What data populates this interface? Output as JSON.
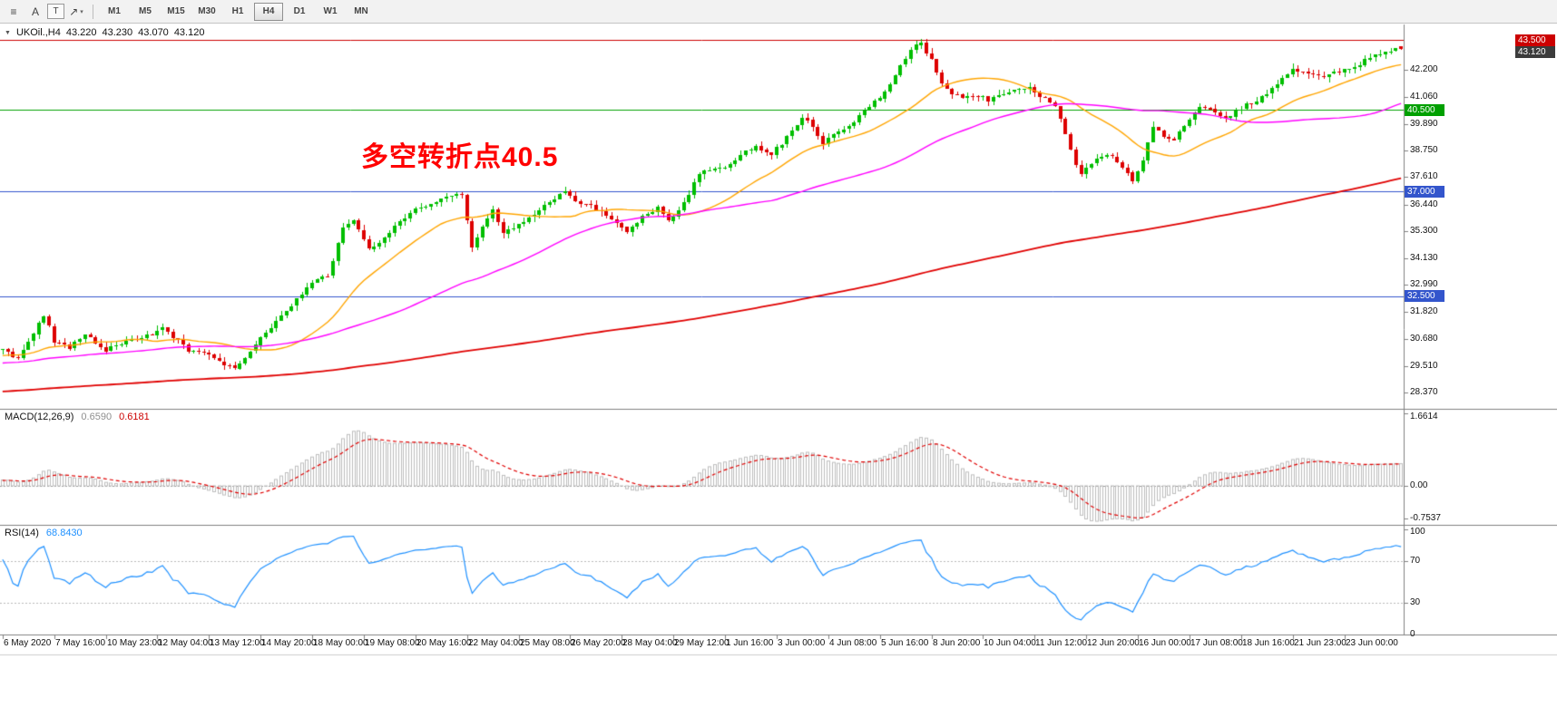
{
  "window": {
    "toolbar": {
      "tool_icons": [
        {
          "name": "lines-tool-icon",
          "glyph": "≡"
        },
        {
          "name": "text-tool-icon",
          "glyph": "A"
        },
        {
          "name": "label-tool-icon",
          "glyph": "T",
          "boxed": true
        },
        {
          "name": "arrows-tool-icon",
          "glyph": "↗",
          "caret": "▾"
        }
      ],
      "timeframes": [
        "M1",
        "M5",
        "M15",
        "M30",
        "H1",
        "H4",
        "D1",
        "W1",
        "MN"
      ],
      "active_timeframe": "H4"
    },
    "chart_header": {
      "collapse_icon": "▼",
      "symbol_period": "UKOil.,H4",
      "open": "43.220",
      "high": "43.230",
      "low": "43.070",
      "close": "43.120"
    }
  },
  "chart_data": {
    "type": "candlestick",
    "symbol": "UKOil",
    "period": "H4",
    "annotation": {
      "text": "多空转折点40.5",
      "color": "#FF0000"
    },
    "candle_colors": {
      "bull": "#00BE00",
      "bear": "#DD0000"
    },
    "price_axis": {
      "ticks": [
        "42.200",
        "41.060",
        "39.890",
        "38.750",
        "37.610",
        "36.440",
        "35.300",
        "34.130",
        "32.990",
        "31.820",
        "30.680",
        "29.510",
        "28.370"
      ]
    },
    "hlines": [
      {
        "label": "43.500",
        "color": "#CC0000",
        "chip_at_edge": true
      },
      {
        "label": "40.500",
        "color": "#00A000",
        "chip_at_edge": false
      },
      {
        "label": "37.000",
        "color": "#3355CC",
        "chip_at_edge": false
      },
      {
        "label": "32.500",
        "color": "#3355CC",
        "chip_at_edge": false
      }
    ],
    "current_price": {
      "label": "43.120",
      "chip_color": "#3C3C3C",
      "chip_at_edge": true
    },
    "moving_averages": [
      {
        "name": "MA21",
        "period": 21,
        "color": "#FFA500"
      },
      {
        "name": "MA60",
        "period": 60,
        "color": "#FF00FF"
      },
      {
        "name": "MA250",
        "period": 250,
        "color": "#E00000"
      }
    ],
    "macd": {
      "label": "MACD(12,26,9)",
      "main_value": "0.6590",
      "signal_value": "0.6181",
      "axis": [
        "1.6614",
        "0.00",
        "-0.7537"
      ],
      "histogram_color": "#BDBDBD",
      "signal_color": "#E00000"
    },
    "rsi": {
      "label": "RSI(14)",
      "value": "68.8430",
      "axis": [
        "100",
        "70",
        "30",
        "0"
      ],
      "levels": [
        70,
        30
      ],
      "color": "#1E90FF"
    },
    "time_axis": [
      "6 May 2020",
      "7 May 16:00",
      "10 May 23:00",
      "12 May 04:00",
      "13 May 12:00",
      "14 May 20:00",
      "18 May 00:00",
      "19 May 08:00",
      "20 May 16:00",
      "22 May 04:00",
      "25 May 08:00",
      "26 May 20:00",
      "28 May 04:00",
      "29 May 12:00",
      "1 Jun 16:00",
      "3 Jun 00:00",
      "4 Jun 08:00",
      "5 Jun 16:00",
      "8 Jun 20:00",
      "10 Jun 04:00",
      "11 Jun 12:00",
      "12 Jun 20:00",
      "16 Jun 00:00",
      "17 Jun 08:00",
      "18 Jun 16:00",
      "21 Jun 23:00",
      "23 Jun 00:00"
    ],
    "bars": 272,
    "noise_seed": 20200623,
    "prehistory_anchors": [
      [
        -260,
        26.8
      ],
      [
        -220,
        27.2
      ],
      [
        -180,
        27.8
      ],
      [
        -140,
        28.2
      ],
      [
        -100,
        28.6
      ],
      [
        -60,
        29.2
      ],
      [
        -30,
        29.6
      ],
      [
        -5,
        30.0
      ]
    ],
    "series_anchors": [
      [
        0,
        30.2
      ],
      [
        3,
        29.8
      ],
      [
        6,
        30.9
      ],
      [
        8,
        31.7
      ],
      [
        10,
        30.6
      ],
      [
        13,
        30.3
      ],
      [
        16,
        30.9
      ],
      [
        20,
        30.2
      ],
      [
        23,
        30.5
      ],
      [
        26,
        30.7
      ],
      [
        29,
        30.9
      ],
      [
        31,
        31.1
      ],
      [
        34,
        30.6
      ],
      [
        36,
        30.2
      ],
      [
        39,
        30.1
      ],
      [
        41,
        29.9
      ],
      [
        43,
        29.6
      ],
      [
        45,
        29.35
      ],
      [
        47,
        29.8
      ],
      [
        50,
        30.7
      ],
      [
        53,
        31.4
      ],
      [
        56,
        32.1
      ],
      [
        58,
        32.6
      ],
      [
        60,
        33.1
      ],
      [
        63,
        33.4
      ],
      [
        66,
        35.4
      ],
      [
        68,
        35.7
      ],
      [
        71,
        34.5
      ],
      [
        74,
        35.0
      ],
      [
        77,
        35.7
      ],
      [
        80,
        36.2
      ],
      [
        83,
        36.5
      ],
      [
        86,
        36.8
      ],
      [
        89,
        36.9
      ],
      [
        91,
        34.6
      ],
      [
        93,
        35.5
      ],
      [
        95,
        36.2
      ],
      [
        97,
        35.2
      ],
      [
        100,
        35.6
      ],
      [
        104,
        36.2
      ],
      [
        107,
        36.7
      ],
      [
        109,
        37.0
      ],
      [
        112,
        36.5
      ],
      [
        114,
        36.4
      ],
      [
        117,
        36.0
      ],
      [
        119,
        35.6
      ],
      [
        121,
        35.2
      ],
      [
        124,
        35.9
      ],
      [
        127,
        36.3
      ],
      [
        129,
        35.7
      ],
      [
        132,
        36.5
      ],
      [
        135,
        37.8
      ],
      [
        138,
        37.9
      ],
      [
        141,
        38.2
      ],
      [
        144,
        38.7
      ],
      [
        146,
        39.0
      ],
      [
        149,
        38.6
      ],
      [
        152,
        39.3
      ],
      [
        155,
        40.2
      ],
      [
        157,
        39.8
      ],
      [
        159,
        39.1
      ],
      [
        162,
        39.6
      ],
      [
        165,
        40.0
      ],
      [
        168,
        40.6
      ],
      [
        171,
        41.3
      ],
      [
        174,
        42.4
      ],
      [
        177,
        43.3
      ],
      [
        178,
        43.4
      ],
      [
        180,
        42.6
      ],
      [
        182,
        41.6
      ],
      [
        184,
        41.2
      ],
      [
        186,
        41.0
      ],
      [
        189,
        41.1
      ],
      [
        191,
        40.9
      ],
      [
        193,
        41.2
      ],
      [
        196,
        41.3
      ],
      [
        199,
        41.5
      ],
      [
        201,
        41.1
      ],
      [
        204,
        40.7
      ],
      [
        206,
        39.5
      ],
      [
        208,
        38.1
      ],
      [
        209,
        37.7
      ],
      [
        211,
        38.2
      ],
      [
        214,
        38.6
      ],
      [
        216,
        38.3
      ],
      [
        219,
        37.5
      ],
      [
        221,
        38.4
      ],
      [
        223,
        39.7
      ],
      [
        225,
        39.4
      ],
      [
        227,
        39.2
      ],
      [
        229,
        39.8
      ],
      [
        232,
        40.6
      ],
      [
        235,
        40.4
      ],
      [
        237,
        40.1
      ],
      [
        240,
        40.6
      ],
      [
        243,
        40.9
      ],
      [
        246,
        41.4
      ],
      [
        248,
        41.8
      ],
      [
        250,
        42.2
      ],
      [
        252,
        42.1
      ],
      [
        255,
        41.9
      ],
      [
        257,
        42.0
      ],
      [
        260,
        42.2
      ],
      [
        263,
        42.5
      ],
      [
        266,
        42.9
      ],
      [
        268,
        43.0
      ],
      [
        271,
        43.12
      ]
    ]
  }
}
